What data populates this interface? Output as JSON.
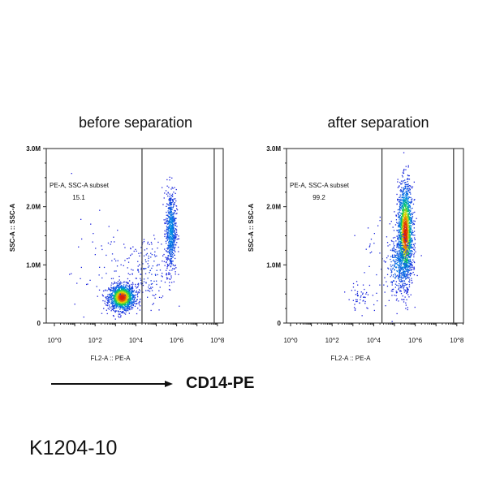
{
  "titles": [
    "before separation",
    "after separation"
  ],
  "arrow_label": "CD14-PE",
  "catalog_number": "K1204-10",
  "chart_data": [
    {
      "type": "scatter",
      "subtype": "density-dot-plot",
      "title": "before separation",
      "xlabel": "FL2-A :: PE-A",
      "ylabel": "SSC-A :: SSC-A",
      "x_scale": "log",
      "x_ticks": [
        "10^0",
        "10^2",
        "10^4",
        "10^6",
        "10^8"
      ],
      "y_ticks": [
        "0",
        "1.0M",
        "2.0M",
        "3.0M"
      ],
      "ylim": [
        0,
        3000000
      ],
      "gate": {
        "name": "PE-A, SSC-A subset",
        "percent": "15.1",
        "x_range": [
          20000,
          70000000
        ]
      },
      "populations": [
        {
          "center_x": 2000,
          "center_y": 450000,
          "description_level": "dense"
        },
        {
          "center_x": 500000,
          "center_y": 1600000,
          "description_level": "moderate"
        }
      ]
    },
    {
      "type": "scatter",
      "subtype": "density-dot-plot",
      "title": "after separation",
      "xlabel": "FL2-A :: PE-A",
      "ylabel": "SSC-A :: SSC-A",
      "x_scale": "log",
      "x_ticks": [
        "10^0",
        "10^2",
        "10^4",
        "10^6",
        "10^8"
      ],
      "y_ticks": [
        "0",
        "1.0M",
        "2.0M",
        "3.0M"
      ],
      "ylim": [
        0,
        3000000
      ],
      "gate": {
        "name": "PE-A, SSC-A subset",
        "percent": "99.2",
        "x_range": [
          25000,
          70000000
        ]
      },
      "populations": [
        {
          "center_x": 300000,
          "center_y": 1600000,
          "description_level": "dense"
        }
      ]
    }
  ],
  "colors": {
    "low": "#1a1adb",
    "mid": "#00c060",
    "high": "#e02010",
    "axis": "#111111"
  }
}
